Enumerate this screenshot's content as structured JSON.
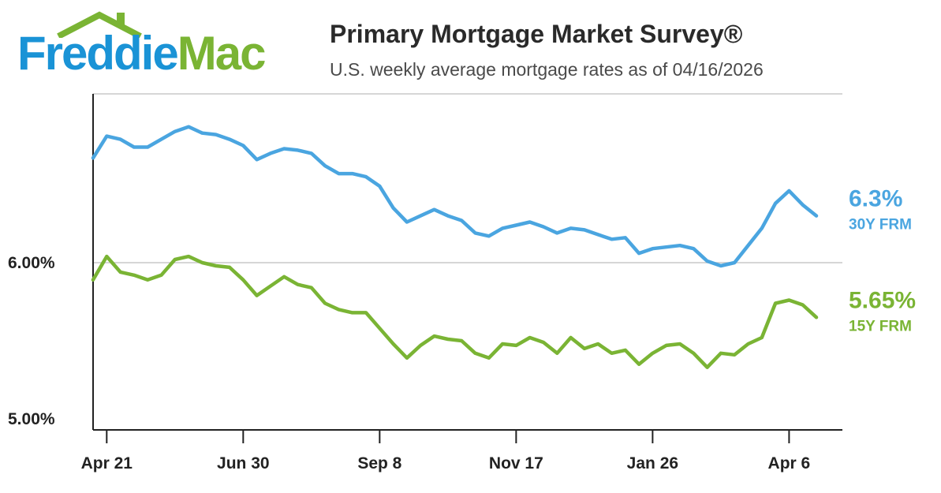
{
  "brand": {
    "logo_word1": "Freddie",
    "logo_word2": "Mac",
    "primary_color": "#1a93d6",
    "secondary_color": "#7ab434"
  },
  "header": {
    "title": "Primary Mortgage Market Survey®",
    "subtitle": "U.S. weekly average mortgage rates as of 04/16/2026"
  },
  "chart_data": {
    "type": "line",
    "xlabel": "",
    "ylabel": "",
    "ylim": [
      5.0,
      7.0
    ],
    "grid": true,
    "x_tick_labels": [
      "Apr 21",
      "Jun 30",
      "Sep 8",
      "Nov 17",
      "Jan 26",
      "Apr 6"
    ],
    "x_tick_week_index": [
      1,
      11,
      21,
      31,
      41,
      51
    ],
    "y_tick_labels": [
      "6.00%",
      "5.00%"
    ],
    "y_tick_values": [
      6.0,
      5.0
    ],
    "legend": "end-labels-right",
    "series": [
      {
        "name": "30Y FRM",
        "end_label": "6.3%",
        "color": "#4aa5e0",
        "values": [
          6.67,
          6.81,
          6.79,
          6.74,
          6.74,
          6.79,
          6.84,
          6.87,
          6.83,
          6.82,
          6.79,
          6.75,
          6.66,
          6.7,
          6.73,
          6.72,
          6.7,
          6.62,
          6.57,
          6.57,
          6.55,
          6.49,
          6.35,
          6.26,
          6.3,
          6.34,
          6.3,
          6.27,
          6.19,
          6.17,
          6.22,
          6.24,
          6.26,
          6.23,
          6.19,
          6.22,
          6.21,
          6.18,
          6.15,
          6.16,
          6.06,
          6.09,
          6.1,
          6.11,
          6.09,
          6.01,
          5.98,
          6.0,
          6.11,
          6.22,
          6.38,
          6.46,
          6.37,
          6.3
        ]
      },
      {
        "name": "15Y FRM",
        "end_label": "5.65%",
        "color": "#7ab434",
        "values": [
          5.89,
          6.04,
          5.94,
          5.92,
          5.89,
          5.92,
          6.02,
          6.04,
          6.0,
          5.98,
          5.97,
          5.89,
          5.79,
          5.85,
          5.91,
          5.86,
          5.84,
          5.74,
          5.7,
          5.68,
          5.68,
          5.58,
          5.48,
          5.39,
          5.47,
          5.53,
          5.51,
          5.5,
          5.42,
          5.39,
          5.48,
          5.47,
          5.52,
          5.49,
          5.42,
          5.52,
          5.45,
          5.48,
          5.42,
          5.44,
          5.35,
          5.42,
          5.47,
          5.48,
          5.42,
          5.33,
          5.42,
          5.41,
          5.48,
          5.52,
          5.74,
          5.76,
          5.73,
          5.65
        ]
      }
    ]
  }
}
